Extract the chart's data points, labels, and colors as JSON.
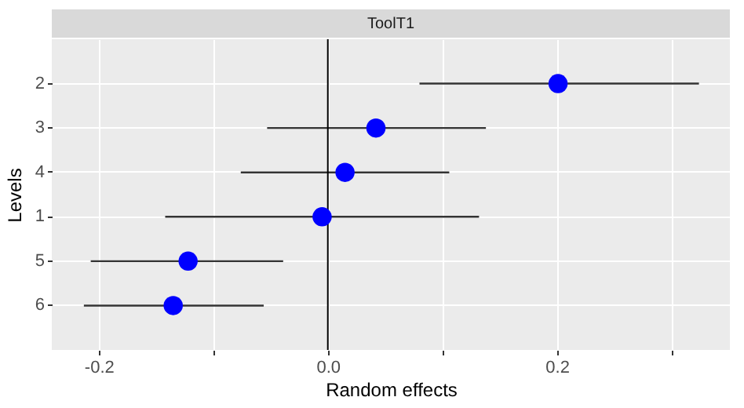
{
  "chart_data": {
    "type": "scatter",
    "title": "ToolT1",
    "xlabel": "Random effects",
    "ylabel": "Levels",
    "orientation": "horizontal",
    "categories": [
      "2",
      "3",
      "4",
      "1",
      "5",
      "6"
    ],
    "values": [
      0.201,
      0.042,
      0.015,
      -0.005,
      -0.122,
      -0.135
    ],
    "errors": [
      [
        0.08,
        0.324
      ],
      [
        -0.053,
        0.138
      ],
      [
        -0.076,
        0.106
      ],
      [
        -0.142,
        0.132
      ],
      [
        -0.207,
        -0.039
      ],
      [
        -0.213,
        -0.056
      ]
    ],
    "color": "#0000ff",
    "marker": "circle",
    "xlim": [
      -0.241,
      0.351
    ],
    "xticks": [
      {
        "value": -0.2,
        "label": "-0.2"
      },
      {
        "value": -0.1,
        "label": null
      },
      {
        "value": 0,
        "label": "0.0"
      },
      {
        "value": 0.1,
        "label": null
      },
      {
        "value": 0.2,
        "label": "0.2"
      },
      {
        "value": 0.3,
        "label": null
      }
    ],
    "ref_lines": [
      {
        "axis": "x",
        "value": 0,
        "label": null,
        "color": "#000000"
      }
    ],
    "grid": true,
    "legend": false
  }
}
